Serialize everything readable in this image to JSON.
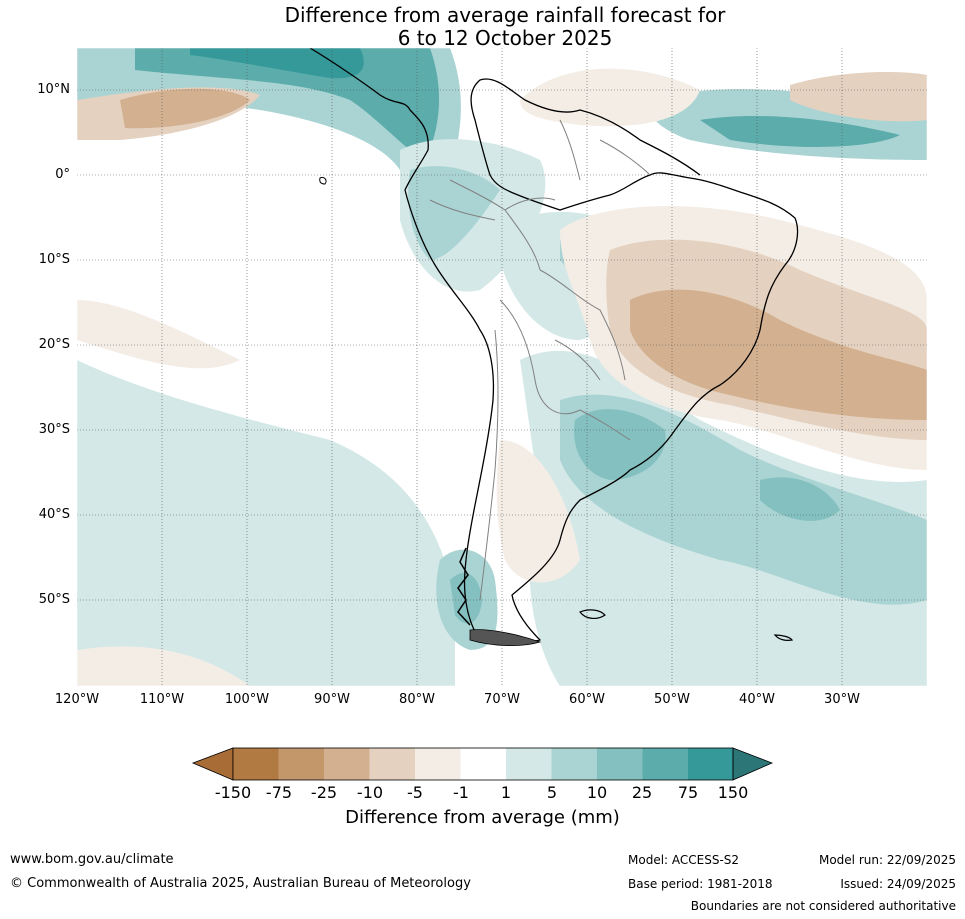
{
  "title": {
    "line1": "Difference from average rainfall forecast for",
    "line2": "6 to 12 October 2025"
  },
  "map": {
    "region": "South America",
    "lat_labels": [
      "10°N",
      "0°",
      "10°S",
      "20°S",
      "30°S",
      "40°S",
      "50°S"
    ],
    "lon_labels": [
      "120°W",
      "110°W",
      "100°W",
      "90°W",
      "80°W",
      "70°W",
      "60°W",
      "50°W",
      "40°W",
      "30°W"
    ],
    "colors": {
      "dry_150": "#a86d36",
      "dry_75": "#b27a43",
      "dry_25": "#c4976a",
      "dry_10": "#d3b08f",
      "dry_5": "#e4d1bf",
      "dry_1": "#f3ede6",
      "neutral": "#ffffff",
      "wet_1": "#d3e8e7",
      "wet_5": "#aad4d3",
      "wet_10": "#83c0bf",
      "wet_25": "#5cacab",
      "wet_75": "#35999a",
      "wet_150": "#2d7678",
      "land_outline": "#000000",
      "country_border": "#808080"
    }
  },
  "colorbar": {
    "labels": [
      "-150",
      "-75",
      "-25",
      "-10",
      "-5",
      "-1",
      "1",
      "5",
      "10",
      "25",
      "75",
      "150"
    ],
    "title": "Difference from average (mm)"
  },
  "footer": {
    "url": "www.bom.gov.au/climate",
    "copyright": "© Commonwealth of Australia 2025, Australian Bureau of Meteorology",
    "model": "Model: ACCESS-S2",
    "base_period": "Base period: 1981-2018",
    "model_run": "Model run: 22/09/2025",
    "issued": "Issued: 24/09/2025",
    "disclaimer": "Boundaries are not considered authoritative"
  }
}
